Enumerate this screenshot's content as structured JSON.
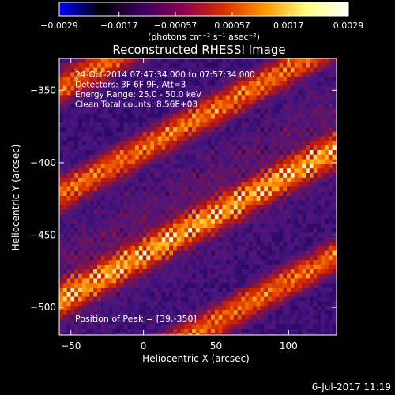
{
  "chart_data": {
    "type": "heatmap",
    "title": "Reconstructed RHESSI Image",
    "xlabel": "Heliocentric X (arcsec)",
    "ylabel": "Heliocentric Y (arcsec)",
    "xlim": [
      -58,
      133
    ],
    "ylim": [
      -519,
      -328
    ],
    "x_ticks": [
      {
        "value": -50,
        "label": "−50"
      },
      {
        "value": 0,
        "label": "0"
      },
      {
        "value": 50,
        "label": "50"
      },
      {
        "value": 100,
        "label": "100"
      }
    ],
    "y_ticks": [
      {
        "value": -350,
        "label": "−350"
      },
      {
        "value": -400,
        "label": "−400"
      },
      {
        "value": -450,
        "label": "−450"
      },
      {
        "value": -500,
        "label": "−500"
      }
    ],
    "colorbar": {
      "min": -0.0029,
      "max": 0.0029,
      "ticks": [
        {
          "value": -0.0029,
          "label": "−0.0029"
        },
        {
          "value": -0.0017,
          "label": "−0.0017"
        },
        {
          "value": -0.00057,
          "label": "−0.00057"
        },
        {
          "value": 0.00057,
          "label": "0.00057"
        },
        {
          "value": 0.0017,
          "label": "0.0017"
        },
        {
          "value": 0.0029,
          "label": "0.0029"
        }
      ],
      "units_label": "(photons cm⁻² s⁻¹ asec⁻²)",
      "colors": [
        "#0000ff",
        "#000000",
        "#3a0060",
        "#8a0050",
        "#d83000",
        "#ff9a00",
        "#ffff80",
        "#ffffff"
      ]
    },
    "annotations": [
      "24-Oct-2014 07:47:34.000 to 07:57:34.000",
      "Detectors: 3F 6F 9F, Att=3",
      "Energy Range: 25.0 - 50.0 keV",
      "Clean     Total counts: 8.56E+03"
    ],
    "peak_label": "Position of Peak = [39,-350]",
    "peak": {
      "x": 39,
      "y": -350
    }
  },
  "footer": {
    "timestamp": "6-Jul-2017 11:19"
  }
}
